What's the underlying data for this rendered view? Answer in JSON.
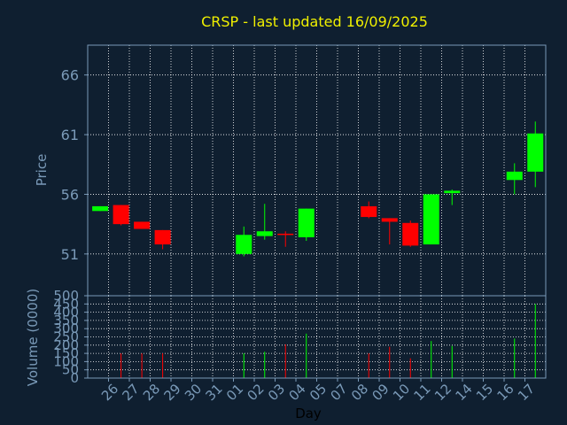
{
  "chart_data": {
    "type": "candlestick",
    "title": "CRSP - last updated 16/09/2025",
    "xlabel": "Day",
    "colors": {
      "background": "#0f1f30",
      "up": "#00ff00",
      "down": "#ff0000",
      "frame": "#7a9ab8",
      "title": "#f0f000"
    },
    "categories": [
      "26",
      "27",
      "28",
      "29",
      "30",
      "31",
      "01",
      "02",
      "03",
      "04",
      "05",
      "07",
      "08",
      "09",
      "10",
      "11",
      "12",
      "14",
      "15",
      "16",
      "17"
    ],
    "price_panel": {
      "ylabel": "Price",
      "ylim": [
        47.5,
        68.5
      ],
      "yticks": [
        51,
        56,
        61,
        66
      ],
      "grid": true
    },
    "volume_panel": {
      "ylabel": "Volume (0000)",
      "ylim": [
        0,
        500
      ],
      "yticks": [
        0,
        50,
        100,
        150,
        200,
        250,
        300,
        350,
        400,
        450,
        500
      ],
      "grid": true
    },
    "candles": [
      {
        "x": 25.6,
        "open": 54.6,
        "close": 55.0,
        "high": 55.0,
        "low": 54.6,
        "volume": 0
      },
      {
        "x": 26.6,
        "open": 55.1,
        "close": 53.5,
        "high": 55.1,
        "low": 53.4,
        "volume": 150
      },
      {
        "x": 27.6,
        "open": 53.7,
        "close": 53.1,
        "high": 53.7,
        "low": 53.1,
        "volume": 150
      },
      {
        "x": 28.6,
        "open": 53.0,
        "close": 51.8,
        "high": 53.0,
        "low": 51.4,
        "volume": 150
      },
      {
        "x": 32.5,
        "open": 51.0,
        "close": 52.6,
        "high": 53.3,
        "low": 50.8,
        "volume": 150
      },
      {
        "x": 33.5,
        "open": 52.5,
        "close": 52.9,
        "high": 55.2,
        "low": 52.2,
        "volume": 160
      },
      {
        "x": 34.5,
        "open": 52.7,
        "close": 52.6,
        "high": 52.9,
        "low": 51.6,
        "volume": 205
      },
      {
        "x": 35.5,
        "open": 52.4,
        "close": 54.8,
        "high": 54.8,
        "low": 52.1,
        "volume": 270
      },
      {
        "x": 38.5,
        "open": 55.0,
        "close": 54.1,
        "high": 55.4,
        "low": 54.0,
        "volume": 150
      },
      {
        "x": 39.5,
        "open": 54.0,
        "close": 53.7,
        "high": 54.0,
        "low": 51.8,
        "volume": 190
      },
      {
        "x": 40.5,
        "open": 53.6,
        "close": 51.7,
        "high": 53.8,
        "low": 51.6,
        "volume": 120
      },
      {
        "x": 41.5,
        "open": 51.8,
        "close": 56.0,
        "high": 56.0,
        "low": 51.8,
        "volume": 225
      },
      {
        "x": 42.5,
        "open": 56.1,
        "close": 56.3,
        "high": 56.4,
        "low": 55.1,
        "volume": 195
      },
      {
        "x": 45.5,
        "open": 57.2,
        "close": 57.9,
        "high": 58.6,
        "low": 56.0,
        "volume": 240
      },
      {
        "x": 46.5,
        "open": 57.9,
        "close": 61.1,
        "high": 62.1,
        "low": 56.6,
        "volume": 450
      }
    ]
  }
}
